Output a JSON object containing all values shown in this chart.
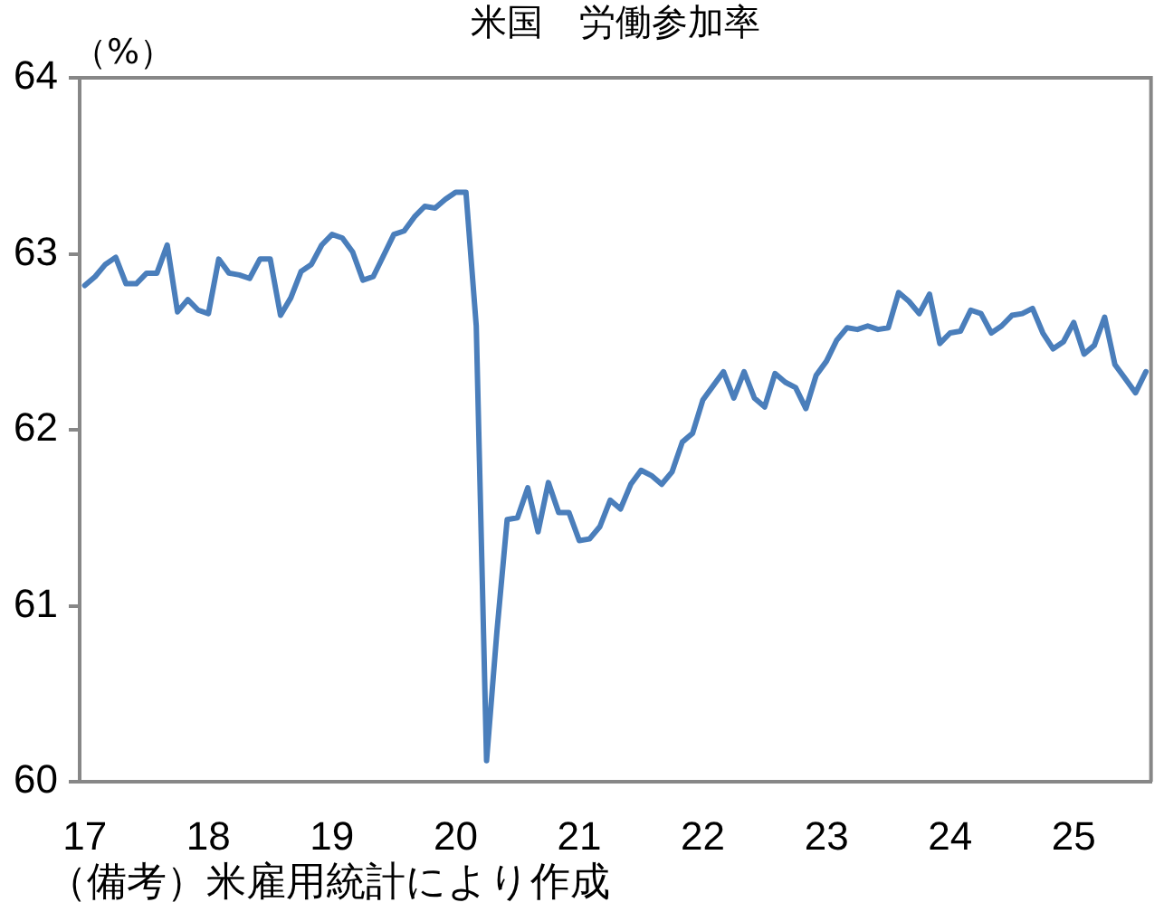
{
  "chart_data": {
    "type": "line",
    "title": "米国　労働参加率",
    "ylabel": "（%）",
    "annotations": [
      "（備考）米雇用統計により作成"
    ],
    "categories": [
      "17",
      null,
      null,
      null,
      null,
      null,
      null,
      null,
      null,
      null,
      null,
      null,
      "18",
      null,
      null,
      null,
      null,
      null,
      null,
      null,
      null,
      null,
      null,
      null,
      "19",
      null,
      null,
      null,
      null,
      null,
      null,
      null,
      null,
      null,
      null,
      null,
      "20",
      null,
      null,
      null,
      null,
      null,
      null,
      null,
      null,
      null,
      null,
      null,
      "21",
      null,
      null,
      null,
      null,
      null,
      null,
      null,
      null,
      null,
      null,
      null,
      "22",
      null,
      null,
      null,
      null,
      null,
      null,
      null,
      null,
      null,
      null,
      null,
      "23",
      null,
      null,
      null,
      null,
      null,
      null,
      null,
      null,
      null,
      null,
      null,
      "24",
      null,
      null,
      null,
      null,
      null,
      null,
      null,
      null,
      null,
      null,
      null,
      "25",
      null,
      null,
      null,
      null,
      null,
      null,
      null
    ],
    "values": [
      62.82,
      62.87,
      62.94,
      62.98,
      62.83,
      62.83,
      62.89,
      62.89,
      63.05,
      62.67,
      62.74,
      62.68,
      62.66,
      62.97,
      62.89,
      62.88,
      62.86,
      62.97,
      62.97,
      62.65,
      62.75,
      62.9,
      62.94,
      63.05,
      63.11,
      63.09,
      63.01,
      62.85,
      62.87,
      62.99,
      63.11,
      63.13,
      63.21,
      63.27,
      63.26,
      63.31,
      63.35,
      63.35,
      62.59,
      60.12,
      60.85,
      61.49,
      61.5,
      61.67,
      61.42,
      61.7,
      61.53,
      61.53,
      61.37,
      61.38,
      61.45,
      61.6,
      61.55,
      61.69,
      61.77,
      61.74,
      61.69,
      61.76,
      61.93,
      61.98,
      62.17,
      62.25,
      62.33,
      62.18,
      62.33,
      62.18,
      62.13,
      62.32,
      62.27,
      62.24,
      62.12,
      62.31,
      62.39,
      62.51,
      62.58,
      62.57,
      62.59,
      62.57,
      62.58,
      62.78,
      62.73,
      62.66,
      62.77,
      62.49,
      62.55,
      62.56,
      62.68,
      62.66,
      62.55,
      62.59,
      62.65,
      62.66,
      62.69,
      62.55,
      62.46,
      62.5,
      62.61,
      62.43,
      62.48,
      62.64,
      62.37,
      62.29,
      62.21,
      62.33
    ],
    "color": "#4a7ebb",
    "ylim": [
      60,
      64
    ],
    "yticks": [
      60,
      61,
      62,
      63,
      64
    ],
    "marker": "none"
  }
}
